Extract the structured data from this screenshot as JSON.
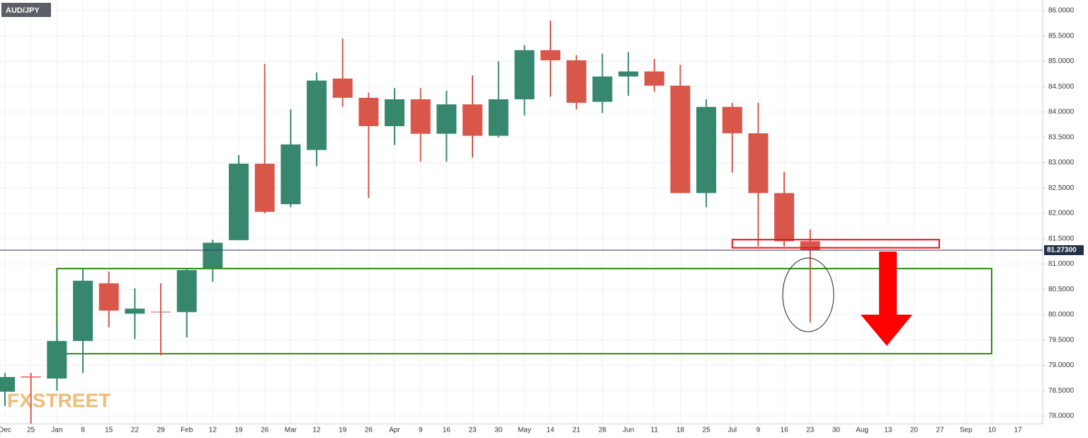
{
  "chart_data": {
    "type": "candlestick",
    "symbol": "AUD/JPY",
    "watermark": "FXSTREET",
    "categories": [
      "Dec",
      "25",
      "Jan",
      "8",
      "15",
      "22",
      "29",
      "Feb",
      "12",
      "19",
      "26",
      "Mar",
      "12",
      "19",
      "26",
      "Apr",
      "9",
      "16",
      "23",
      "30",
      "May",
      "14",
      "21",
      "28",
      "Jun",
      "11",
      "18",
      "25",
      "Jul",
      "9",
      "16",
      "23",
      "30",
      "Aug",
      "13",
      "20",
      "27",
      "Sep",
      "10",
      "17"
    ],
    "open": [
      78.48,
      78.78,
      78.74,
      79.48,
      80.62,
      80.02,
      80.06,
      80.05,
      80.92,
      81.47,
      82.98,
      82.18,
      83.25,
      84.66,
      84.28,
      83.72,
      84.25,
      83.57,
      84.15,
      83.53,
      84.25,
      85.22,
      85.02,
      84.2,
      84.7,
      84.8,
      84.52,
      82.4,
      84.1,
      83.58,
      82.4,
      81.45,
      null,
      null,
      null,
      null,
      null,
      null,
      null,
      null
    ],
    "high": [
      78.85,
      78.85,
      79.8,
      80.9,
      80.85,
      80.52,
      80.62,
      80.9,
      81.48,
      83.15,
      84.95,
      84.05,
      84.78,
      85.45,
      84.38,
      84.47,
      84.47,
      84.42,
      84.72,
      85.0,
      85.32,
      85.8,
      85.12,
      85.15,
      85.18,
      85.05,
      84.93,
      84.25,
      84.18,
      84.18,
      82.82,
      81.68,
      null,
      null,
      null,
      null,
      null,
      null,
      null,
      null
    ],
    "low": [
      78.2,
      77.85,
      78.5,
      78.85,
      79.75,
      79.52,
      79.2,
      79.55,
      80.65,
      81.47,
      82.0,
      82.12,
      82.93,
      84.1,
      82.3,
      83.35,
      83.02,
      83.02,
      83.1,
      83.5,
      83.93,
      84.3,
      84.05,
      83.98,
      84.32,
      84.4,
      82.4,
      82.12,
      82.8,
      81.35,
      81.35,
      79.85,
      null,
      null,
      null,
      null,
      null,
      null,
      null,
      null
    ],
    "close": [
      78.77,
      78.76,
      79.48,
      80.67,
      80.08,
      80.12,
      80.05,
      80.88,
      81.42,
      82.98,
      82.03,
      83.36,
      84.62,
      84.28,
      83.72,
      84.25,
      83.57,
      84.15,
      83.53,
      84.25,
      85.22,
      85.02,
      84.18,
      84.7,
      84.8,
      84.52,
      82.4,
      84.1,
      83.58,
      82.4,
      81.45,
      81.27,
      null,
      null,
      null,
      null,
      null,
      null,
      null,
      null
    ],
    "up_color": "#37876f",
    "down_color": "#d9574a",
    "ylim": [
      78.0,
      86.0
    ],
    "yticks": [
      {
        "value": 78.0,
        "label": "78.0000"
      },
      {
        "value": 78.5,
        "label": "78.5000"
      },
      {
        "value": 79.0,
        "label": "79.0000"
      },
      {
        "value": 79.5,
        "label": "79.5000"
      },
      {
        "value": 80.0,
        "label": "80.0000"
      },
      {
        "value": 80.5,
        "label": "80.5000"
      },
      {
        "value": 81.0,
        "label": "81.0000"
      },
      {
        "value": 81.5,
        "label": "81.5000"
      },
      {
        "value": 82.0,
        "label": "82.0000"
      },
      {
        "value": 82.5,
        "label": "82.5000"
      },
      {
        "value": 83.0,
        "label": "83.0000"
      },
      {
        "value": 83.5,
        "label": "83.5000"
      },
      {
        "value": 84.0,
        "label": "84.0000"
      },
      {
        "value": 84.5,
        "label": "84.5000"
      },
      {
        "value": 85.0,
        "label": "85.0000"
      },
      {
        "value": 85.5,
        "label": "85.5000"
      },
      {
        "value": 86.0,
        "label": "86.0000"
      }
    ],
    "grid": true,
    "last_price": {
      "value": 81.273,
      "label": "81.27300"
    },
    "support_zone": [
      79.23,
      80.91
    ],
    "resistance_zone": [
      81.32,
      81.48
    ]
  }
}
